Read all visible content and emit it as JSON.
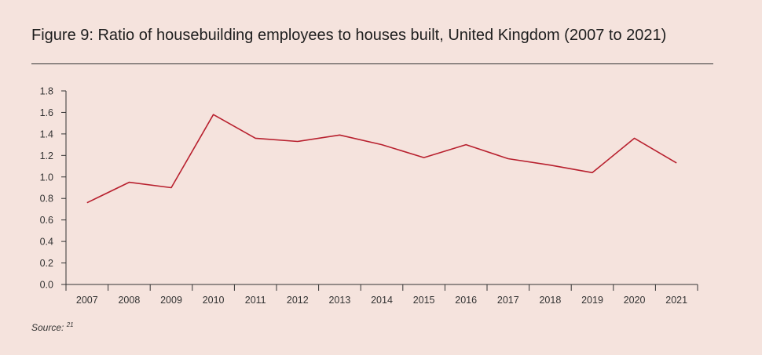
{
  "header": {
    "title": "Figure 9: Ratio of housebuilding employees to houses built, United Kingdom (2007 to 2021)"
  },
  "footer": {
    "source_label": "Source:",
    "source_ref": "21"
  },
  "chart_data": {
    "type": "line",
    "title": "Figure 9: Ratio of housebuilding employees to houses built, United Kingdom (2007 to 2021)",
    "xlabel": "",
    "ylabel": "",
    "ylim": [
      0,
      1.8
    ],
    "yticks": [
      "0.0",
      "0.2",
      "0.4",
      "0.6",
      "0.8",
      "1.0",
      "1.2",
      "1.4",
      "1.6",
      "1.8"
    ],
    "categories": [
      "2007",
      "2008",
      "2009",
      "2010",
      "2011",
      "2012",
      "2013",
      "2014",
      "2015",
      "2016",
      "2017",
      "2018",
      "2019",
      "2020",
      "2021"
    ],
    "series": [
      {
        "name": "Ratio of housebuilding employees to houses built",
        "color": "#b8202e",
        "values": [
          0.76,
          0.95,
          0.9,
          1.58,
          1.36,
          1.33,
          1.39,
          1.3,
          1.18,
          1.3,
          1.17,
          1.11,
          1.04,
          1.36,
          1.13
        ]
      }
    ]
  }
}
